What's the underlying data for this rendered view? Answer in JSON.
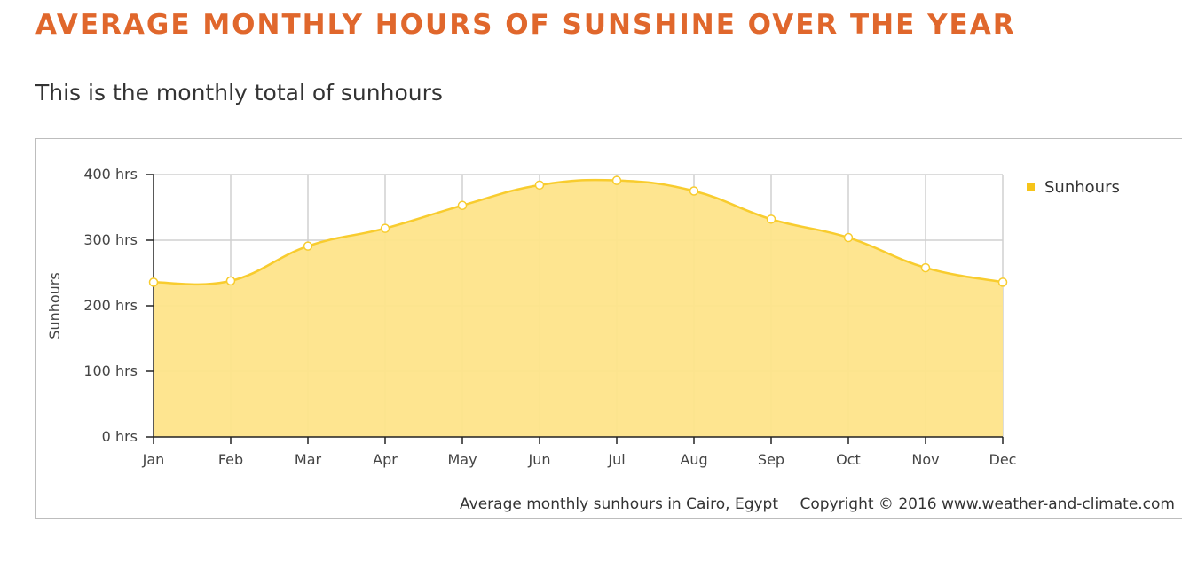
{
  "page": {
    "title": "AVERAGE MONTHLY HOURS OF SUNSHINE OVER THE YEAR",
    "subtitle": "This is the monthly total of sunhours"
  },
  "colors": {
    "title": "#e0672c",
    "fill": "#fee48a",
    "line": "#f8cc2e",
    "legend_marker": "#f6c419",
    "grid": "#d0d0d0"
  },
  "chart_data": {
    "type": "area",
    "categories": [
      "Jan",
      "Feb",
      "Mar",
      "Apr",
      "May",
      "Jun",
      "Jul",
      "Aug",
      "Sep",
      "Oct",
      "Nov",
      "Dec"
    ],
    "series": [
      {
        "name": "Sunhours",
        "values": [
          236,
          238,
          291,
          318,
          353,
          384,
          391,
          375,
          332,
          304,
          258,
          236
        ]
      }
    ],
    "ylabel": "Sunhours",
    "ylim": [
      0,
      400
    ],
    "yticks": [
      0,
      100,
      200,
      300,
      400
    ],
    "ytick_labels": [
      "0 hrs",
      "100 hrs",
      "200 hrs",
      "300 hrs",
      "400 hrs"
    ],
    "grid": true,
    "legend_position": "top-right",
    "caption": "Average monthly sunhours in Cairo, Egypt",
    "copyright": "Copyright © 2016 www.weather-and-climate.com"
  }
}
